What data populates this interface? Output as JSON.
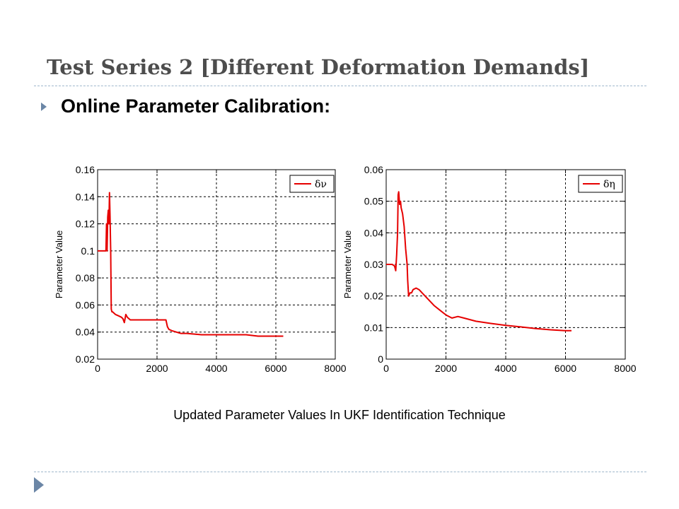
{
  "slide": {
    "title": "Test Series 2 [Different Deformation Demands]",
    "bullet": "Online Parameter Calibration:",
    "caption": "Updated Parameter Values In UKF Identification Technique"
  },
  "colors": {
    "series": "#e60000",
    "grid": "#000000",
    "accent": "#6b86a6"
  },
  "icons": {
    "bullet": "triangle-right-icon",
    "footer": "triangle-right-icon"
  },
  "chart_data": [
    {
      "type": "line",
      "ylabel": "Parameter Value",
      "xlim": [
        0,
        8000
      ],
      "ylim": [
        0.02,
        0.16
      ],
      "xticks": [
        0,
        2000,
        4000,
        6000,
        8000
      ],
      "yticks": [
        0.02,
        0.04,
        0.06,
        0.08,
        0.1,
        0.12,
        0.14,
        0.16
      ],
      "grid": true,
      "legend_position": "top-right",
      "series": [
        {
          "name": "δν",
          "x": [
            0,
            200,
            280,
            300,
            320,
            340,
            360,
            380,
            400,
            420,
            440,
            460,
            480,
            500,
            600,
            700,
            800,
            850,
            900,
            950,
            1000,
            1100,
            1500,
            1800,
            2000,
            2300,
            2350,
            2400,
            2500,
            2800,
            3000,
            3500,
            4000,
            4500,
            5000,
            5400,
            6000,
            6250
          ],
          "y": [
            0.1,
            0.1,
            0.1,
            0.12,
            0.1,
            0.125,
            0.13,
            0.12,
            0.143,
            0.125,
            0.1,
            0.057,
            0.055,
            0.055,
            0.053,
            0.052,
            0.051,
            0.05,
            0.047,
            0.053,
            0.051,
            0.049,
            0.049,
            0.049,
            0.049,
            0.049,
            0.044,
            0.042,
            0.041,
            0.039,
            0.039,
            0.038,
            0.038,
            0.038,
            0.038,
            0.037,
            0.037,
            0.037
          ]
        }
      ]
    },
    {
      "type": "line",
      "ylabel": "Parameter Value",
      "xlim": [
        0,
        8000
      ],
      "ylim": [
        0,
        0.06
      ],
      "xticks": [
        0,
        2000,
        4000,
        6000,
        8000
      ],
      "yticks": [
        0,
        0.01,
        0.02,
        0.03,
        0.04,
        0.05,
        0.06
      ],
      "grid": true,
      "legend_position": "top-right",
      "series": [
        {
          "name": "δη",
          "x": [
            0,
            200,
            280,
            320,
            350,
            380,
            400,
            420,
            450,
            480,
            500,
            550,
            600,
            650,
            700,
            720,
            750,
            800,
            850,
            900,
            1000,
            1100,
            1200,
            1400,
            1600,
            1800,
            2000,
            2200,
            2400,
            2600,
            3000,
            3500,
            4000,
            4500,
            5000,
            5500,
            6000,
            6200
          ],
          "y": [
            0.03,
            0.03,
            0.0295,
            0.028,
            0.033,
            0.04,
            0.052,
            0.053,
            0.049,
            0.05,
            0.048,
            0.046,
            0.042,
            0.035,
            0.03,
            0.025,
            0.02,
            0.021,
            0.021,
            0.022,
            0.0225,
            0.022,
            0.021,
            0.019,
            0.017,
            0.0155,
            0.014,
            0.013,
            0.0135,
            0.013,
            0.012,
            0.0113,
            0.0107,
            0.0102,
            0.0097,
            0.0093,
            0.009,
            0.009
          ]
        }
      ]
    }
  ]
}
